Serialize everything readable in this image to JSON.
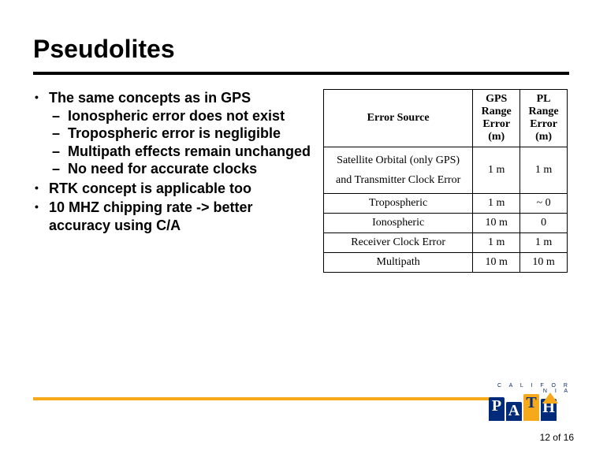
{
  "title": "Pseudolites",
  "bullets": {
    "items": [
      {
        "text": "The same concepts as in GPS",
        "sub": [
          "Ionospheric error does not exist",
          "Tropospheric error is negligible",
          "Multipath effects remain unchanged",
          "No need for accurate clocks"
        ]
      },
      {
        "text": "RTK concept is applicable too",
        "sub": []
      },
      {
        "text": "10 MHZ chipping rate -> better accuracy using C/A",
        "sub": []
      }
    ]
  },
  "table": {
    "headers": {
      "col1": "Error Source",
      "col2_line1": "GPS",
      "col2_line2": "Range",
      "col2_line3": "Error (m)",
      "col3_line1": "PL Range",
      "col3_line2": "Error (m)"
    },
    "rows": [
      {
        "src": "Satellite Orbital (only GPS) and Transmitter Clock Error",
        "gps": "1 m",
        "pl": "1 m"
      },
      {
        "src": "Tropospheric",
        "gps": "1 m",
        "pl": "~ 0"
      },
      {
        "src": "Ionospheric",
        "gps": "10 m",
        "pl": "0"
      },
      {
        "src": "Receiver Clock Error",
        "gps": "1 m",
        "pl": "1 m"
      },
      {
        "src": "Multipath",
        "gps": "10 m",
        "pl": "10 m"
      }
    ],
    "border_color": "#000000",
    "font_family": "Times New Roman"
  },
  "footer": {
    "rule_color": "#f6a91a",
    "logo_text_top": "C A L I F O R N I A",
    "logo_letters": [
      "P",
      "A",
      "T",
      "H"
    ],
    "logo_colors": {
      "primary": "#002a7a",
      "accent": "#f6a91a"
    },
    "page_current": "12",
    "page_sep": "of",
    "page_total": "16"
  }
}
